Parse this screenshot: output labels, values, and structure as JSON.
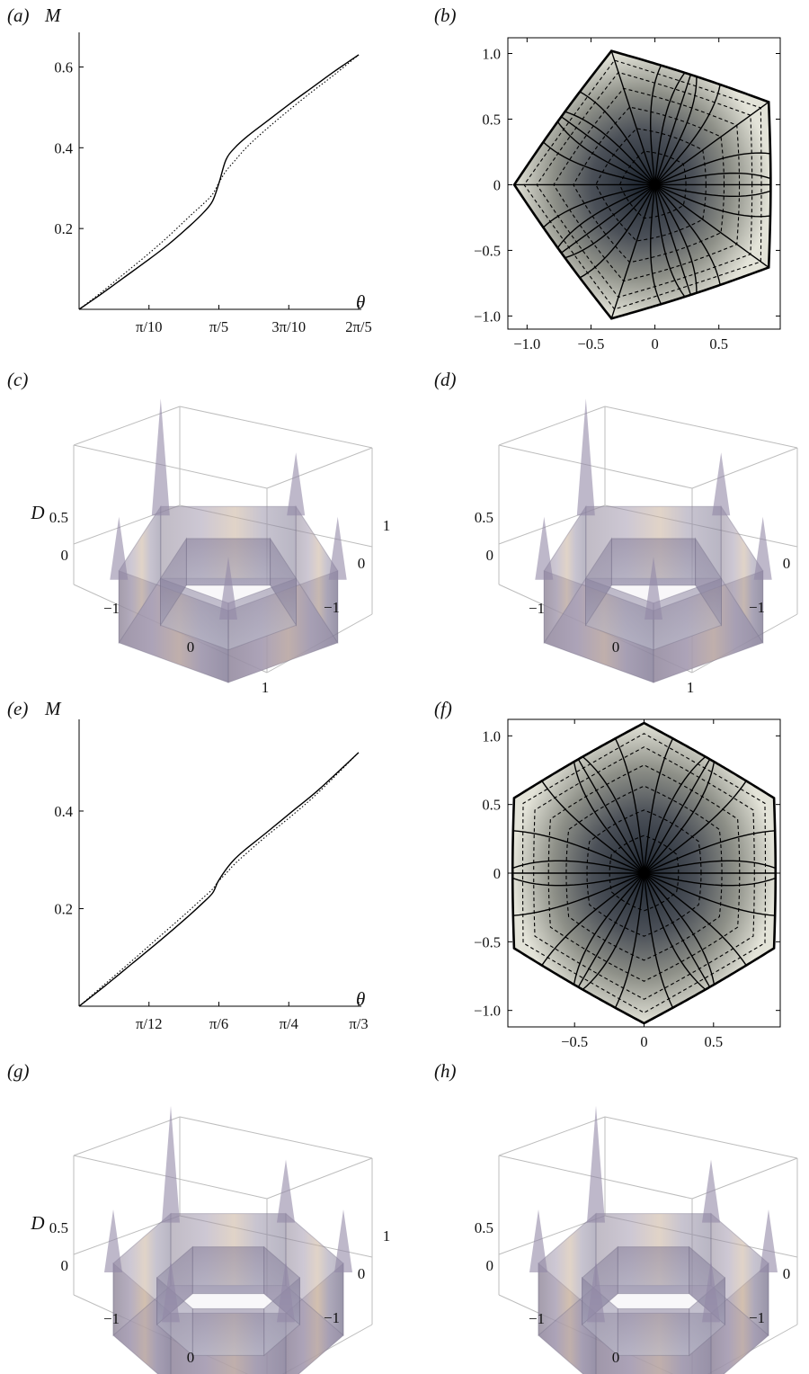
{
  "panels": {
    "a": {
      "label": "(a)",
      "chart_data": {
        "type": "line",
        "ylabel": "M",
        "xlabel": "θ",
        "xlim": [
          0,
          1.2566
        ],
        "ylim": [
          0,
          0.65
        ],
        "x_ticks": [
          0.31416,
          0.62832,
          0.94248,
          1.25664
        ],
        "x_tick_labels": [
          "π/10",
          "π/5",
          "3π/10",
          "2π/5"
        ],
        "y_ticks": [
          0.2,
          0.4,
          0.6
        ],
        "y_tick_labels": [
          "0.2",
          "0.4",
          "0.6"
        ],
        "series": [
          {
            "style": "solid",
            "x": [
              0,
              0.1,
              0.2,
              0.3,
              0.4,
              0.5,
              0.56,
              0.6,
              0.63,
              0.66,
              0.7,
              0.76,
              0.85,
              0.95,
              1.05,
              1.15,
              1.2566
            ],
            "y": [
              0,
              0.038,
              0.078,
              0.118,
              0.16,
              0.208,
              0.24,
              0.268,
              0.315,
              0.37,
              0.4,
              0.43,
              0.468,
              0.51,
              0.55,
              0.59,
              0.63
            ]
          },
          {
            "style": "dotted",
            "x": [
              0,
              0.1,
              0.2,
              0.3,
              0.4,
              0.5,
              0.56,
              0.6,
              0.63,
              0.66,
              0.7,
              0.76,
              0.85,
              0.95,
              1.05,
              1.15,
              1.2566
            ],
            "y": [
              0,
              0.042,
              0.087,
              0.132,
              0.18,
              0.232,
              0.262,
              0.285,
              0.315,
              0.342,
              0.368,
              0.405,
              0.45,
              0.496,
              0.54,
              0.582,
              0.63
            ]
          }
        ]
      }
    },
    "b": {
      "label": "(b)",
      "chart_data": {
        "type": "contour",
        "shape": "rounded pentagon",
        "sides": 5,
        "xlim": [
          -1.15,
          0.98
        ],
        "ylim": [
          -1.1,
          1.12
        ],
        "x_ticks": [
          -1.0,
          -0.5,
          0,
          0.5
        ],
        "x_tick_labels": [
          "−1.0",
          "−0.5",
          "0",
          "0.5"
        ],
        "y_ticks": [
          1.0,
          0.5,
          0,
          -0.5,
          -1.0
        ],
        "y_tick_labels": [
          "1.0",
          "0.5",
          "0",
          "−0.5",
          "−1.0"
        ],
        "radial_lines": 30,
        "rings": 6
      }
    },
    "c": {
      "label": "(c)",
      "chart_data": {
        "type": "surface3d",
        "zlabel": "D",
        "sides": 5,
        "z_tick_labels": [
          "0.5",
          "0"
        ],
        "x_tick_labels": [
          "−1",
          "0",
          "1"
        ],
        "y_tick_labels": [
          "1",
          "0",
          "−1"
        ]
      }
    },
    "d": {
      "label": "(d)",
      "chart_data": {
        "type": "surface3d",
        "zlabel": "",
        "sides": 5,
        "z_tick_labels": [
          "0.5",
          "0"
        ],
        "x_tick_labels": [
          "−1",
          "0",
          "1"
        ],
        "y_tick_labels": [
          "1",
          "0",
          "−1"
        ]
      }
    },
    "e": {
      "label": "(e)",
      "chart_data": {
        "type": "line",
        "ylabel": "M",
        "xlabel": "θ",
        "xlim": [
          0,
          1.0472
        ],
        "ylim": [
          0,
          0.54
        ],
        "x_ticks": [
          0.2618,
          0.5236,
          0.7854,
          1.0472
        ],
        "x_tick_labels": [
          "π/12",
          "π/6",
          "π/4",
          "π/3"
        ],
        "y_ticks": [
          0.2,
          0.4
        ],
        "y_tick_labels": [
          "0.2",
          "0.4"
        ],
        "series": [
          {
            "style": "solid",
            "x": [
              0,
              0.1,
              0.2,
              0.3,
              0.4,
              0.46,
              0.5,
              0.52,
              0.55,
              0.58,
              0.62,
              0.7,
              0.8,
              0.9,
              1.0472
            ],
            "y": [
              0,
              0.043,
              0.088,
              0.133,
              0.18,
              0.21,
              0.232,
              0.255,
              0.28,
              0.3,
              0.32,
              0.355,
              0.4,
              0.445,
              0.52
            ]
          },
          {
            "style": "dotted",
            "x": [
              0,
              0.1,
              0.2,
              0.3,
              0.4,
              0.46,
              0.5,
              0.52,
              0.55,
              0.58,
              0.62,
              0.7,
              0.8,
              0.9,
              1.0472
            ],
            "y": [
              0,
              0.047,
              0.094,
              0.142,
              0.19,
              0.22,
              0.24,
              0.255,
              0.272,
              0.29,
              0.31,
              0.348,
              0.392,
              0.44,
              0.52
            ]
          }
        ]
      }
    },
    "f": {
      "label": "(f)",
      "chart_data": {
        "type": "contour",
        "shape": "rounded hexagon",
        "sides": 6,
        "xlim": [
          -0.98,
          0.98
        ],
        "ylim": [
          -1.12,
          1.12
        ],
        "x_ticks": [
          -0.5,
          0,
          0.5
        ],
        "x_tick_labels": [
          "−0.5",
          "0",
          "0.5"
        ],
        "y_ticks": [
          1.0,
          0.5,
          0,
          -0.5,
          -1.0
        ],
        "y_tick_labels": [
          "1.0",
          "0.5",
          "0",
          "−0.5",
          "−1.0"
        ],
        "radial_lines": 30,
        "rings": 6
      }
    },
    "g": {
      "label": "(g)",
      "chart_data": {
        "type": "surface3d",
        "zlabel": "D",
        "sides": 6,
        "z_tick_labels": [
          "0.5",
          "0"
        ],
        "x_tick_labels": [
          "−1",
          "0",
          "1"
        ],
        "y_tick_labels": [
          "1",
          "0",
          "−1"
        ]
      }
    },
    "h": {
      "label": "(h)",
      "chart_data": {
        "type": "surface3d",
        "zlabel": "",
        "sides": 6,
        "z_tick_labels": [
          "0.5",
          "0"
        ],
        "x_tick_labels": [
          "−1",
          "0",
          "1"
        ],
        "y_tick_labels": [
          "1",
          "0",
          "−1"
        ]
      }
    }
  }
}
